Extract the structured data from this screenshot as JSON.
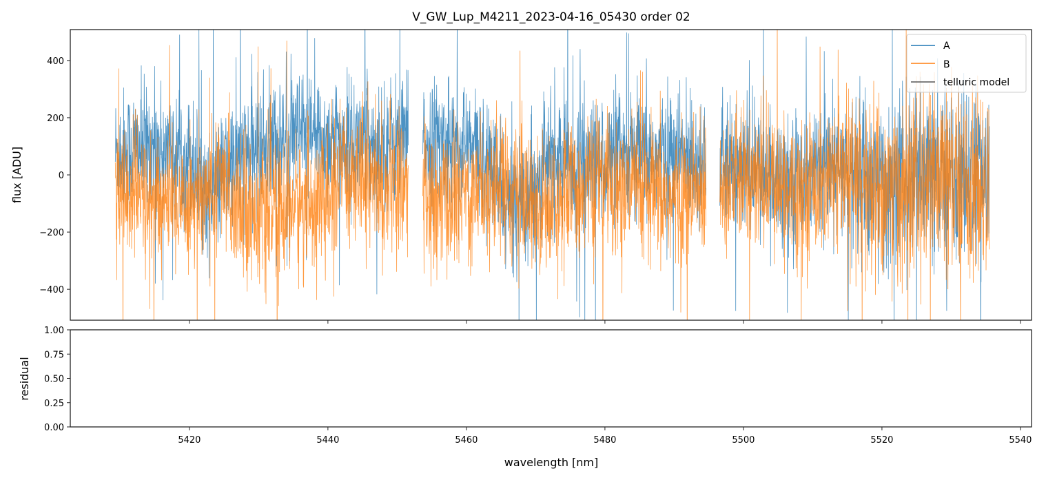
{
  "chart_data": {
    "type": "line",
    "title": "V_GW_Lup_M4211_2023-04-16_05430  order 02",
    "xlabel": "wavelength [nm]",
    "xlim": [
      5402.8,
      5541.6
    ],
    "xticks": [
      5420,
      5440,
      5460,
      5480,
      5500,
      5520,
      5540
    ],
    "xtick_labels": [
      "5420",
      "5440",
      "5460",
      "5480",
      "5500",
      "5520",
      "5540"
    ],
    "panels": [
      {
        "ylabel": "flux [ADU]",
        "ylim": [
          -508,
          508
        ],
        "yticks": [
          400,
          200,
          0,
          -200,
          -400
        ],
        "ytick_labels": [
          "400",
          "200",
          "0",
          "−200",
          "−400"
        ],
        "legend": {
          "placement": "top-right",
          "entries": [
            "A",
            "B",
            "telluric model"
          ]
        },
        "series": [
          {
            "name": "A",
            "color": "#1f77b4",
            "alpha": 0.8,
            "segments": [
              [
                5409.3,
                5451.6
              ],
              [
                5453.7,
                5494.6
              ],
              [
                5496.6,
                5535.5
              ]
            ],
            "approx_mean_profile": [
              [
                5410,
                80
              ],
              [
                5415,
                100
              ],
              [
                5420,
                60
              ],
              [
                5423,
                -80
              ],
              [
                5426,
                40
              ],
              [
                5430,
                100
              ],
              [
                5435,
                130
              ],
              [
                5440,
                120
              ],
              [
                5445,
                110
              ],
              [
                5450,
                120
              ],
              [
                5455,
                110
              ],
              [
                5460,
                100
              ],
              [
                5463,
                60
              ],
              [
                5466,
                -110
              ],
              [
                5469,
                -60
              ],
              [
                5472,
                60
              ],
              [
                5476,
                40
              ],
              [
                5480,
                50
              ],
              [
                5485,
                60
              ],
              [
                5490,
                70
              ],
              [
                5494,
                60
              ],
              [
                5497,
                20
              ],
              [
                5502,
                10
              ],
              [
                5508,
                0
              ],
              [
                5514,
                20
              ],
              [
                5520,
                -30
              ],
              [
                5525,
                -20
              ],
              [
                5530,
                0
              ],
              [
                5535,
                -10
              ]
            ],
            "approx_noise_std": 110
          },
          {
            "name": "B",
            "color": "#ff7f0e",
            "alpha": 0.8,
            "segments": [
              [
                5409.3,
                5451.6
              ],
              [
                5453.7,
                5494.6
              ],
              [
                5496.6,
                5535.5
              ]
            ],
            "approx_mean_profile": [
              [
                5410,
                -60
              ],
              [
                5415,
                -100
              ],
              [
                5420,
                -80
              ],
              [
                5425,
                -40
              ],
              [
                5430,
                -140
              ],
              [
                5435,
                -110
              ],
              [
                5440,
                -90
              ],
              [
                5444,
                40
              ],
              [
                5448,
                -60
              ],
              [
                5451,
                -20
              ],
              [
                5455,
                -120
              ],
              [
                5460,
                -60
              ],
              [
                5465,
                -20
              ],
              [
                5470,
                -120
              ],
              [
                5475,
                -60
              ],
              [
                5480,
                -20
              ],
              [
                5485,
                -70
              ],
              [
                5490,
                -90
              ],
              [
                5494,
                -60
              ],
              [
                5497,
                -10
              ],
              [
                5502,
                -30
              ],
              [
                5508,
                -40
              ],
              [
                5514,
                -20
              ],
              [
                5520,
                -60
              ],
              [
                5525,
                -40
              ],
              [
                5530,
                -30
              ],
              [
                5535,
                -50
              ]
            ],
            "approx_noise_std": 120
          },
          {
            "name": "telluric model",
            "color": "#555555",
            "values": []
          }
        ]
      },
      {
        "ylabel": "residual",
        "ylim": [
          0,
          1
        ],
        "yticks": [
          1.0,
          0.75,
          0.5,
          0.25,
          0.0
        ],
        "ytick_labels": [
          "1.00",
          "0.75",
          "0.50",
          "0.25",
          "0.00"
        ],
        "series": []
      }
    ],
    "grid": false
  }
}
